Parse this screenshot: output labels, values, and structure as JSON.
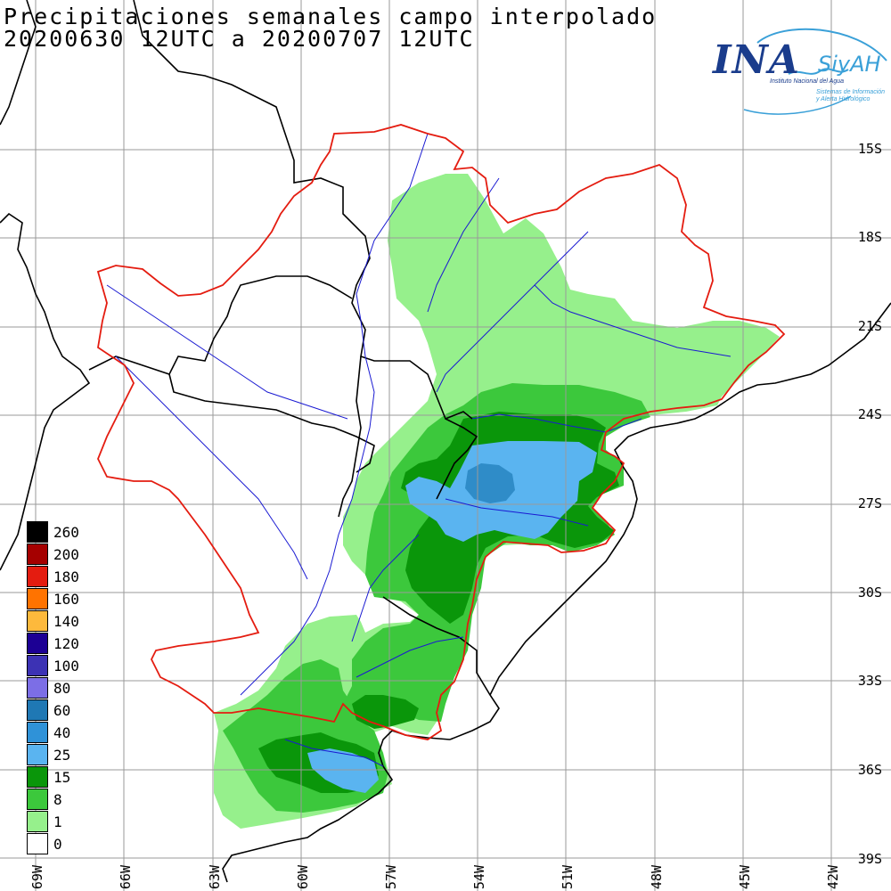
{
  "title": {
    "line1": "Precipitaciones semanales campo interpolado",
    "line2": "20200630 12UTC a 20200707 12UTC"
  },
  "logo": {
    "brand": "INA",
    "system": "SiyAH",
    "institute": "Instituto Nacional del Agua",
    "subtitle_1": "Sistemas de Información",
    "subtitle_2": "y Alerta Hidrológico"
  },
  "legend": {
    "items": [
      {
        "label": "260",
        "color": "#000000"
      },
      {
        "label": "200",
        "color": "#a50000"
      },
      {
        "label": "180",
        "color": "#e41c10"
      },
      {
        "label": "160",
        "color": "#ff7300"
      },
      {
        "label": "140",
        "color": "#fdb93c"
      },
      {
        "label": "120",
        "color": "#1c0094"
      },
      {
        "label": "100",
        "color": "#3c32b4"
      },
      {
        "label": "80",
        "color": "#7c6ee6"
      },
      {
        "label": "60",
        "color": "#1f78b4"
      },
      {
        "label": "40",
        "color": "#2f92d8"
      },
      {
        "label": "25",
        "color": "#5ab4f0"
      },
      {
        "label": "15",
        "color": "#0a960a"
      },
      {
        "label": "8",
        "color": "#3cc83c"
      },
      {
        "label": "1",
        "color": "#96f08c"
      },
      {
        "label": "0",
        "color": "#ffffff"
      }
    ]
  },
  "latitude_labels": [
    "15S",
    "18S",
    "21S",
    "24S",
    "27S",
    "30S",
    "33S",
    "36S",
    "39S"
  ],
  "longitude_labels": [
    "69W",
    "66W",
    "63W",
    "60W",
    "57W",
    "54W",
    "51W",
    "48W",
    "45W",
    "42W"
  ]
}
